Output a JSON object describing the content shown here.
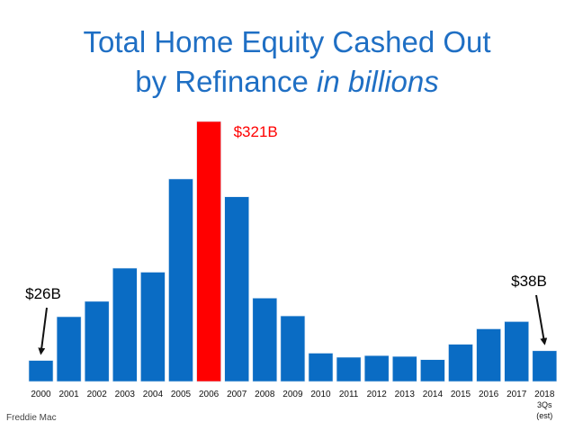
{
  "header": {
    "title_line1": "Total Home Equity Cashed Out",
    "title_line2": "by Refinance",
    "title_line2_italic": "in billions"
  },
  "source": "Freddie Mac",
  "chart_data": {
    "type": "bar",
    "categories": [
      "2000",
      "2001",
      "2002",
      "2003",
      "2004",
      "2005",
      "2006",
      "2007",
      "2008",
      "2009",
      "2010",
      "2011",
      "2012",
      "2013",
      "2014",
      "2015",
      "2016",
      "2017",
      "2018"
    ],
    "category_sublabels": {
      "2018": [
        "3Qs",
        "(est)"
      ]
    },
    "values": [
      26,
      80,
      99,
      140,
      135,
      250,
      321,
      228,
      103,
      81,
      35,
      30,
      32,
      31,
      27,
      46,
      65,
      74,
      38
    ],
    "highlight_index": 6,
    "colors": {
      "bar": "#0a6cc4",
      "highlight": "#ff0000",
      "annotation_highlight": "#ff0000",
      "text": "#000000",
      "title": "#1f6fc4"
    },
    "annotations": [
      {
        "text": "$26B",
        "category": "2000",
        "arrow": true
      },
      {
        "text": "$321B",
        "category": "2006",
        "arrow": false,
        "color": "#ff0000"
      },
      {
        "text": "$38B",
        "category": "2018",
        "arrow": true
      }
    ],
    "ylim": [
      0,
      321
    ],
    "grid": false,
    "legend": "none"
  }
}
